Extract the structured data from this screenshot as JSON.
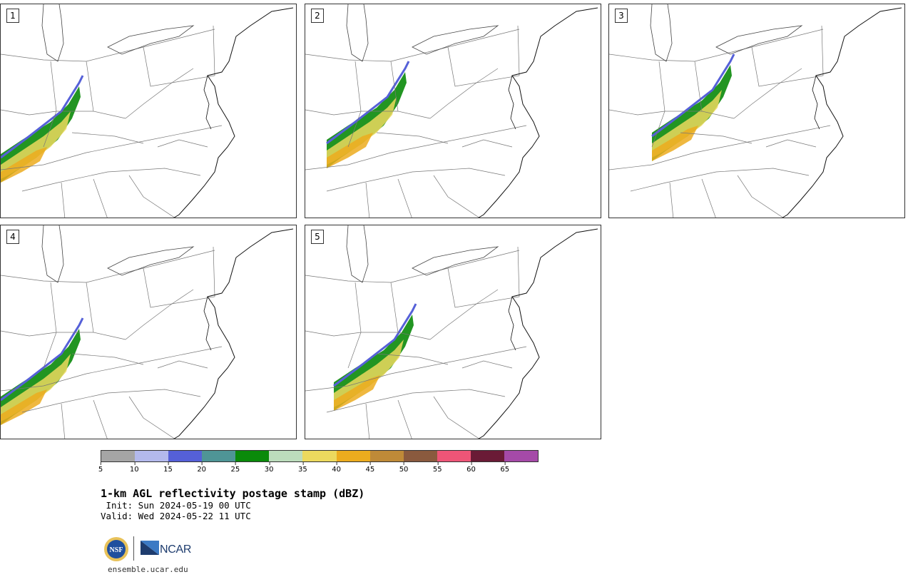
{
  "panels": [
    {
      "number": "1"
    },
    {
      "number": "2"
    },
    {
      "number": "3"
    },
    {
      "number": "4"
    },
    {
      "number": "5"
    }
  ],
  "colorbar": {
    "colors": [
      "#a5a5a5",
      "#b3b9ec",
      "#5560d8",
      "#4f9596",
      "#0a8a0a",
      "#bcdcbc",
      "#ecd95e",
      "#ecac1e",
      "#bf8a38",
      "#8a5a3e",
      "#ee5577",
      "#6a1b36",
      "#a54aa8"
    ],
    "ticks": [
      "5",
      "10",
      "15",
      "20",
      "25",
      "30",
      "35",
      "40",
      "45",
      "50",
      "55",
      "60",
      "65"
    ]
  },
  "title": "1-km AGL reflectivity postage stamp (dBZ)",
  "init": " Init: Sun 2024-05-19 00 UTC",
  "valid": "Valid: Wed 2024-05-22 11 UTC",
  "logos": {
    "nsf": "NSF",
    "ncar": "NCAR"
  },
  "website": "ensemble.ucar.edu"
}
